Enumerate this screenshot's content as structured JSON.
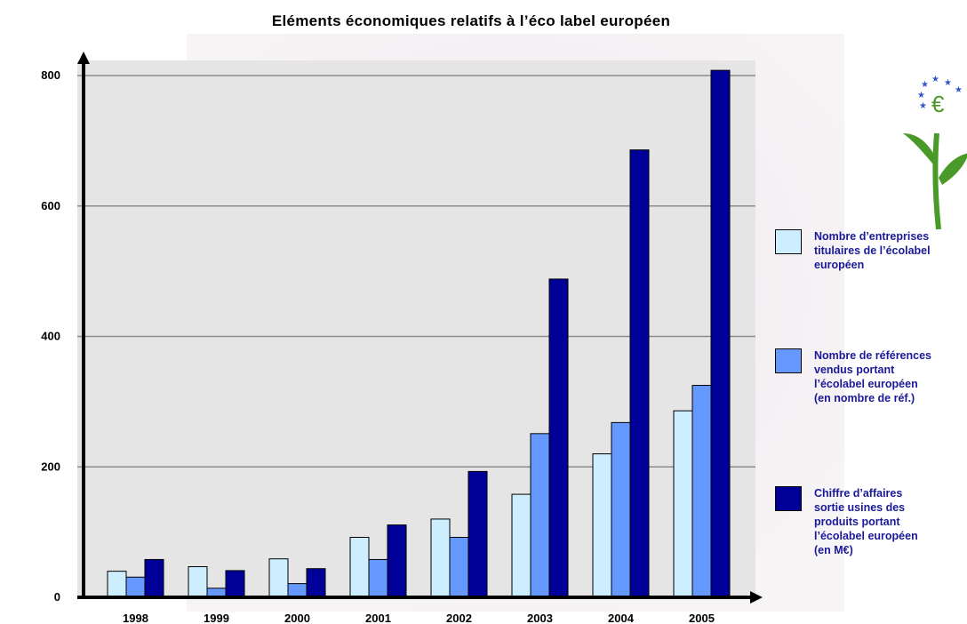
{
  "chart_data": {
    "type": "bar",
    "title": "Eléments économiques relatifs à l’éco label européen",
    "categories": [
      "1998",
      "1999",
      "2000",
      "2001",
      "2002",
      "2003",
      "2004",
      "2005"
    ],
    "series": [
      {
        "name": "Nombre d’entreprises titulaires de l’écolabel européen",
        "color": "#cceeff",
        "values": [
          40,
          47,
          59,
          92,
          120,
          158,
          220,
          286
        ]
      },
      {
        "name": "Nombre de références vendus portant l’écolabel européen (en nombre de réf.)",
        "color": "#6699ff",
        "values": [
          31,
          14,
          21,
          58,
          92,
          251,
          268,
          325
        ]
      },
      {
        "name": "Chiffre d’affaires sortie usines des produits portant l’écolabel européen (en M€)",
        "color": "#000099",
        "values": [
          58,
          41,
          44,
          111,
          193,
          488,
          686,
          808
        ]
      }
    ],
    "yticks": [
      "0",
      "200",
      "400",
      "600",
      "800"
    ],
    "ylim": [
      0,
      840
    ],
    "grid": true,
    "legend_position": "right"
  },
  "legend": [
    {
      "lines": [
        "Nombre d’entreprises",
        "titulaires de l’écolabel",
        "européen"
      ]
    },
    {
      "lines": [
        "Nombre de références",
        "vendus portant",
        "l’écolabel européen",
        "(en nombre de réf.)"
      ]
    },
    {
      "lines": [
        "Chiffre d’affaires",
        "sortie usines des",
        "produits portant",
        "l’écolabel européen",
        "(en M€)"
      ]
    }
  ],
  "logo": {
    "icon": "eu-ecolabel-flower-icon",
    "symbol": "€",
    "colors": [
      "#4a9a2a",
      "#3355cc"
    ]
  }
}
